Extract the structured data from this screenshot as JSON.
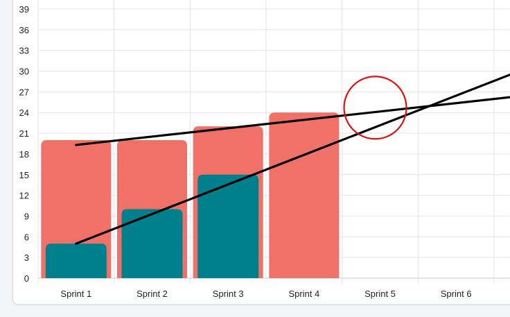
{
  "chart_data": {
    "type": "bar",
    "categories": [
      "Sprint 1",
      "Sprint 2",
      "Sprint 3",
      "Sprint 4",
      "Sprint 5",
      "Sprint 6"
    ],
    "series": [
      {
        "values": [
          20,
          20,
          22,
          24,
          null,
          null
        ],
        "color": "#f07167"
      },
      {
        "values": [
          5,
          10,
          15,
          null,
          null,
          null
        ],
        "color": "#007f8c"
      }
    ],
    "trend_lines": [
      {
        "points": [
          [
            0,
            19.3
          ],
          [
            6.6,
            27.3
          ]
        ],
        "color": "#000000"
      },
      {
        "points": [
          [
            0,
            5
          ],
          [
            6.6,
            33.3
          ]
        ],
        "color": "#000000"
      }
    ],
    "highlight": {
      "x": 4,
      "y": 25,
      "color": "#dd1111"
    },
    "yticks": [
      0,
      3,
      6,
      9,
      12,
      15,
      18,
      21,
      24,
      27,
      30,
      33,
      36,
      39
    ],
    "ylim": [
      0,
      40
    ],
    "grid": true,
    "legend": "none"
  }
}
